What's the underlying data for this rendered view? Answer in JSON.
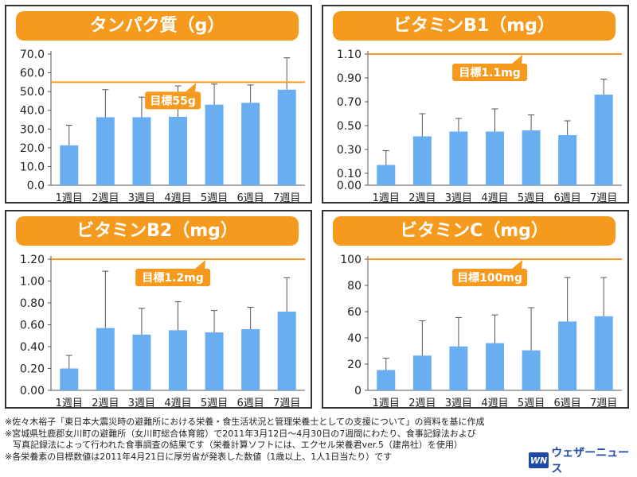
{
  "chart_data": [
    {
      "type": "bar",
      "title": "タンパク質（g）",
      "categories": [
        "1週目",
        "2週目",
        "3週目",
        "4週目",
        "5週目",
        "6週目",
        "7週目"
      ],
      "values": [
        21.3,
        36.3,
        36.3,
        36.5,
        43.0,
        44.0,
        51.0
      ],
      "error_upper": [
        32.0,
        51.0,
        47.0,
        53.0,
        54.0,
        53.5,
        68.0
      ],
      "ylim": [
        0,
        70
      ],
      "yticks": [
        0,
        10,
        20,
        30,
        40,
        50,
        60,
        70
      ],
      "ytick_labels": [
        "0.0",
        "10.0",
        "20.0",
        "30.0",
        "40.0",
        "50.0",
        "60.0",
        "70.0"
      ],
      "target": 55,
      "target_label": "目標55g",
      "grid": false
    },
    {
      "type": "bar",
      "title": "ビタミンB1（mg）",
      "categories": [
        "1週目",
        "2週目",
        "3週目",
        "4週目",
        "5週目",
        "6週目",
        "7週目"
      ],
      "values": [
        0.17,
        0.41,
        0.45,
        0.45,
        0.46,
        0.42,
        0.76
      ],
      "error_upper": [
        0.29,
        0.6,
        0.56,
        0.64,
        0.59,
        0.54,
        0.89
      ],
      "ylim": [
        0,
        1.1
      ],
      "yticks": [
        0,
        0.1,
        0.3,
        0.5,
        0.7,
        0.9,
        1.1
      ],
      "ytick_labels": [
        "0.00",
        "0.10",
        "0.30",
        "0.50",
        "0.70",
        "0.90",
        "1.10"
      ],
      "target": 1.1,
      "target_label": "目標1.1mg",
      "grid": false
    },
    {
      "type": "bar",
      "title": "ビタミンB2（mg）",
      "categories": [
        "1週目",
        "2週目",
        "3週目",
        "4週目",
        "5週目",
        "6週目",
        "7週目"
      ],
      "values": [
        0.2,
        0.57,
        0.51,
        0.55,
        0.53,
        0.56,
        0.72
      ],
      "error_upper": [
        0.32,
        1.09,
        0.75,
        0.81,
        0.73,
        0.76,
        1.03
      ],
      "ylim": [
        0,
        1.2
      ],
      "yticks": [
        0,
        0.2,
        0.4,
        0.6,
        0.8,
        1.0,
        1.2
      ],
      "ytick_labels": [
        "0.00",
        "0.20",
        "0.40",
        "0.60",
        "0.80",
        "1.00",
        "1.20"
      ],
      "target": 1.2,
      "target_label": "目標1.2mg",
      "grid": false
    },
    {
      "type": "bar",
      "title": "ビタミンC（mg）",
      "categories": [
        "1週目",
        "2週目",
        "3週目",
        "4週目",
        "5週目",
        "6週目",
        "7週目"
      ],
      "values": [
        15.5,
        26.5,
        33.5,
        36.0,
        30.5,
        52.5,
        56.5
      ],
      "error_upper": [
        24.5,
        53.0,
        55.5,
        57.5,
        63.0,
        86.0,
        86.0
      ],
      "ylim": [
        0,
        100
      ],
      "yticks": [
        0,
        20,
        40,
        60,
        80,
        100
      ],
      "ytick_labels": [
        "0",
        "20",
        "40",
        "60",
        "80",
        "100"
      ],
      "target": 100,
      "target_label": "目標100mg",
      "grid": false
    }
  ],
  "colors": {
    "bar": "#6aaef2",
    "target_line": "#f59a1c",
    "title_bg": "#f59a1c",
    "error_bar": "#555555",
    "logo": "#1f4aa8"
  },
  "footnotes": [
    "※佐々木裕子「東日本大震災時の避難所における栄養・食生活状況と管理栄養士としての支援について」の資料を基に作成",
    "※宮城県牡鹿郡女川町の避難所（女川町総合体育館）で2011年3月12日～4月30日の7週間にわたり、食事記録法および",
    "写真記録法によって行われた食事調査の結果です（栄養計算ソフトには、エクセル栄養君ver.5（建帛社）を使用）",
    "※各栄養素の目標数値は2011年4月21日に厚労省が発表した数値（1歳以上、1人1日当たり）です"
  ],
  "logo": {
    "mark": "WN",
    "text": "ウェザーニュース"
  }
}
